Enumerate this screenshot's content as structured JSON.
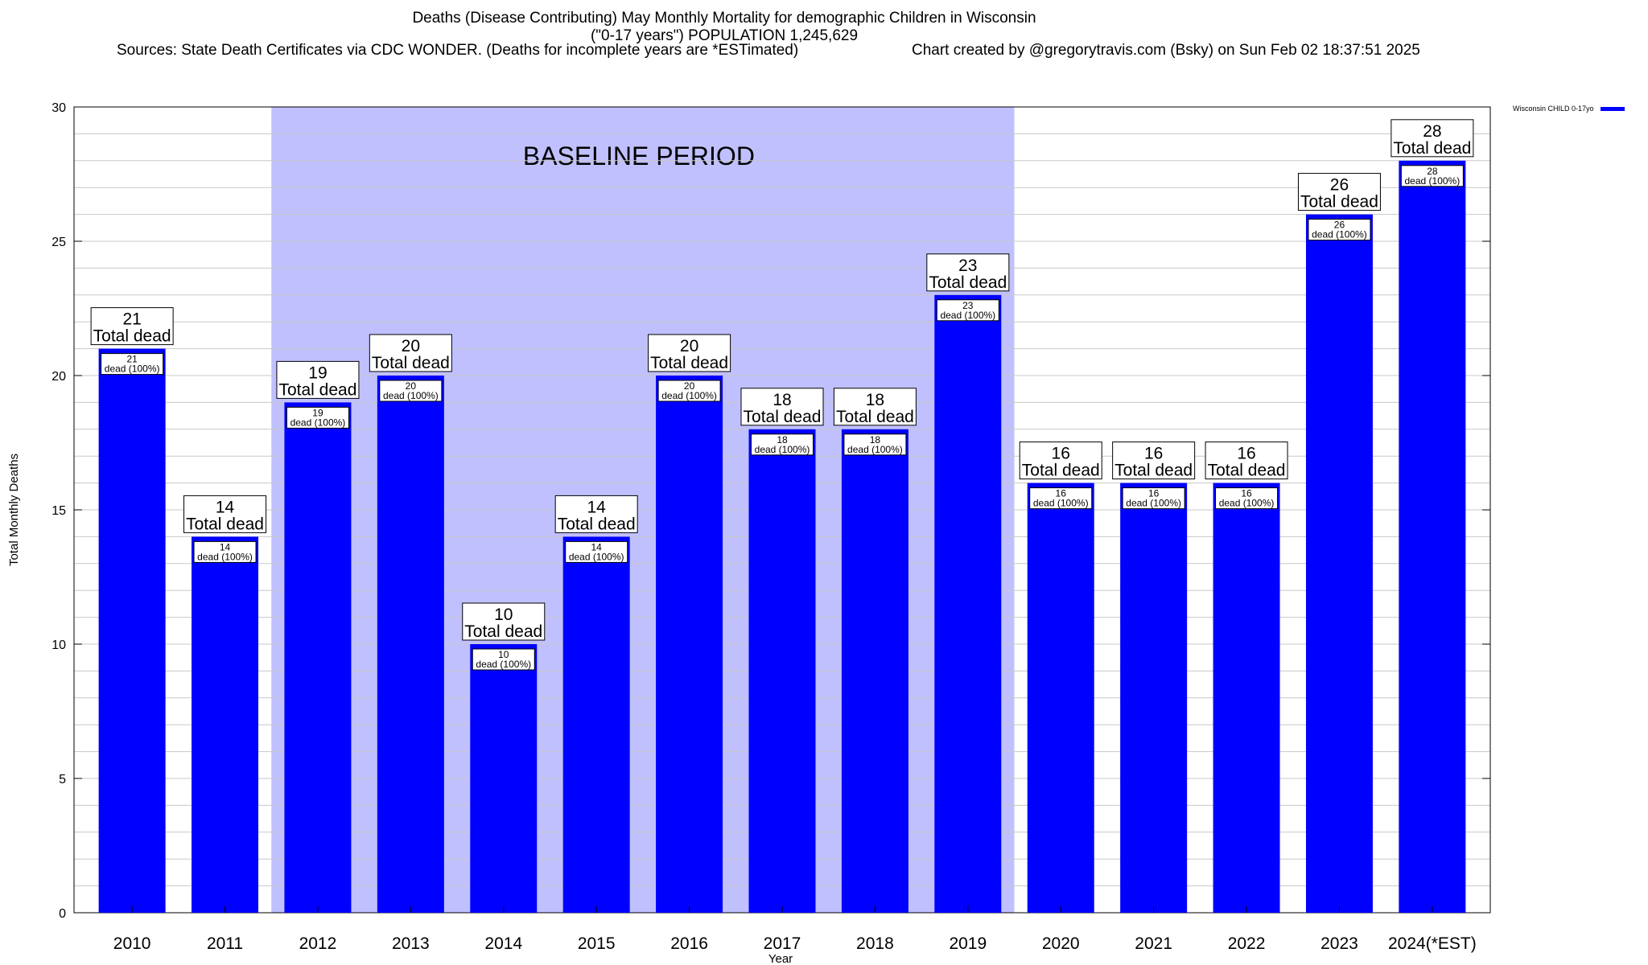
{
  "header": {
    "title_line1": "Deaths (Disease Contributing) May Monthly Mortality for demographic Children in Wisconsin",
    "title_line2": "(\"0-17 years\") POPULATION 1,245,629",
    "sources": "Sources: State Death Certificates via CDC WONDER. (Deaths for incomplete years are *ESTimated)",
    "credit": "Chart created by @gregorytravis.com (Bsky) on Sun Feb 02 18:37:51 2025"
  },
  "legend": {
    "label": "Wisconsin CHILD 0-17yo",
    "color": "#0000ff"
  },
  "colors": {
    "bar": "#0000ff",
    "baseline_band": "#c0c0ff",
    "grid": "#c8c8c8"
  },
  "chart_data": {
    "type": "bar",
    "categories": [
      "2010",
      "2011",
      "2012",
      "2013",
      "2014",
      "2015",
      "2016",
      "2017",
      "2018",
      "2019",
      "2020",
      "2021",
      "2022",
      "2023",
      "2024(*EST)"
    ],
    "series": [
      {
        "name": "Wisconsin CHILD 0-17yo",
        "values": [
          21,
          14,
          19,
          20,
          10,
          14,
          20,
          18,
          18,
          23,
          16,
          16,
          16,
          26,
          28
        ]
      }
    ],
    "xlabel": "Year",
    "ylabel": "Total Monthly Deaths",
    "ylim": [
      0,
      30
    ],
    "yticks": [
      0,
      5,
      10,
      15,
      20,
      25,
      30
    ],
    "grid": true,
    "legend_position": "top-right",
    "total_label": "Total dead",
    "inner_label": "dead (100%)",
    "baseline": {
      "label": "BASELINE PERIOD",
      "from": "2012",
      "to": "2019"
    }
  }
}
